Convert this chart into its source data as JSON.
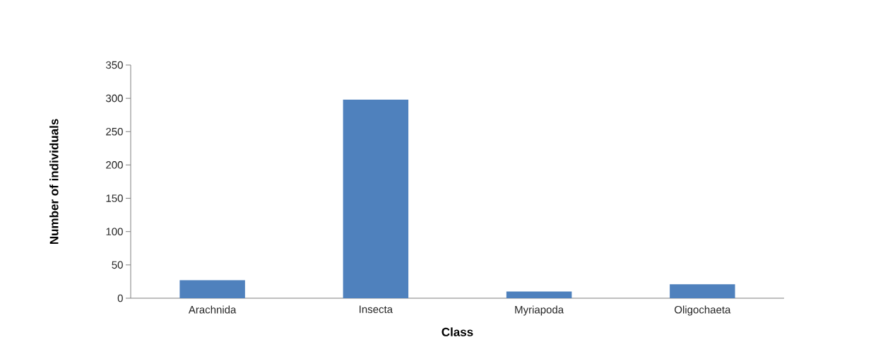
{
  "chart_data": {
    "type": "bar",
    "xlabel": "Class",
    "ylabel": "Number of individuals",
    "categories": [
      "Arachnida",
      "Insecta",
      "Myriapoda",
      "Oligochaeta"
    ],
    "values": [
      27,
      298,
      10,
      21
    ],
    "color": "#4f81bd",
    "ylim": [
      0,
      350
    ],
    "yticks": [
      0,
      50,
      100,
      150,
      200,
      250,
      300,
      350
    ]
  }
}
